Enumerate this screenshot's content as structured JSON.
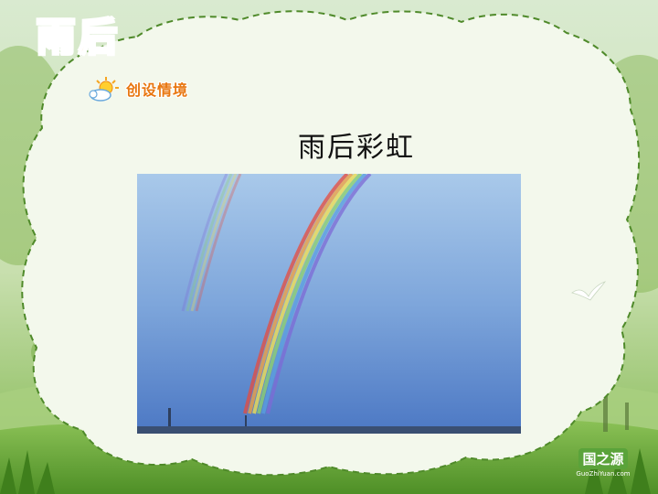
{
  "slide": {
    "title_chars": [
      "雨",
      "后"
    ],
    "section_tag": "创设情境",
    "heading": "雨后彩虹"
  },
  "photo": {
    "subject": "rainbow-photo"
  },
  "brand": {
    "main": "国之源",
    "sub": "GuoZhiYuan.com"
  },
  "colors": {
    "title": "#f28a1c",
    "frame_dash": "#4f8a2a",
    "grass": "#6fae3c",
    "sky_top": "#9fc3e8",
    "sky_bottom": "#4f7fc9"
  }
}
